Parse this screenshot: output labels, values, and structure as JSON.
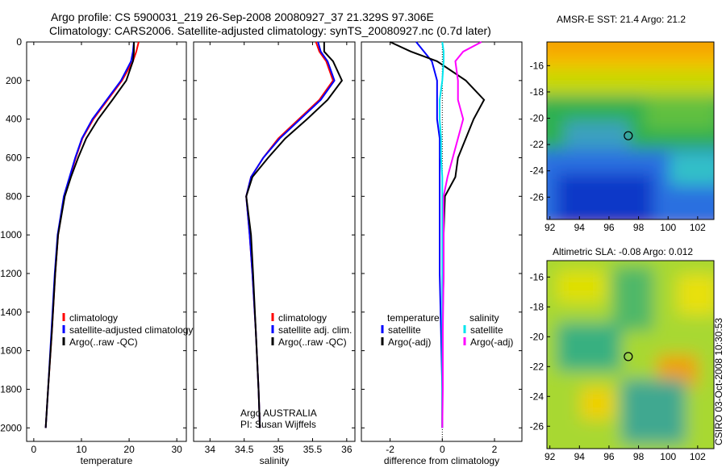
{
  "title_line1": "Argo profile: CS 5900031_219 26-Sep-2008 20080927_37 21.329S 97.306E",
  "title_line2": "Climatology: CARS2006. Satellite-adjusted climatology: synTS_20080927.nc (0.7d later)",
  "credit": "CSIRO 03-Oct-2008 10:30:53",
  "colors": {
    "climatology": "#ff0000",
    "satellite": "#0000ff",
    "argo": "#000000",
    "sat_sal": "#00e5ee",
    "argo_sal": "#ff00ff"
  },
  "chart_data": [
    {
      "type": "line",
      "xlabel": "temperature",
      "xlim": [
        -1.5,
        32
      ],
      "ylim": [
        2070,
        0
      ],
      "xticks": [
        0,
        10,
        20,
        30
      ],
      "yticks": [
        0,
        200,
        400,
        600,
        800,
        1000,
        1200,
        1400,
        1600,
        1800,
        2000
      ],
      "legend": [
        "climatology",
        "satellite-adjusted climatology",
        "Argo(..raw -QC)"
      ],
      "depth": [
        0,
        50,
        100,
        200,
        300,
        400,
        500,
        600,
        700,
        800,
        1000,
        1200,
        1500,
        1800,
        2000
      ],
      "series": [
        {
          "name": "climatology",
          "color": "#ff0000",
          "values": [
            22,
            21.5,
            20.8,
            18.5,
            15.5,
            12.5,
            10.2,
            8.8,
            7.6,
            6.4,
            5.1,
            4.5,
            3.8,
            3.0,
            2.5
          ]
        },
        {
          "name": "satellite-adjusted climatology",
          "color": "#0000ff",
          "values": [
            21,
            20.8,
            20.4,
            18.3,
            15.3,
            12.3,
            10.1,
            8.7,
            7.5,
            6.3,
            5.0,
            4.4,
            3.7,
            3.0,
            2.5
          ]
        },
        {
          "name": "Argo(..raw -QC)",
          "color": "#000000",
          "values": [
            21,
            21,
            20.8,
            19.4,
            16.5,
            13.5,
            11,
            9.3,
            7.8,
            6.5,
            5.1,
            4.5,
            3.8,
            3.0,
            2.5
          ]
        }
      ]
    },
    {
      "type": "line",
      "xlabel": "salinity",
      "xlim": [
        33.76,
        36.12
      ],
      "ylim": [
        2070,
        0
      ],
      "xticks": [
        34,
        34.5,
        35,
        35.5,
        36
      ],
      "legend": [
        "climatology",
        "satellite adj. clim.",
        "Argo(..raw -QC)"
      ],
      "annotation": [
        "Argo AUSTRALIA",
        "PI: Susan Wijffels"
      ],
      "depth": [
        0,
        50,
        100,
        200,
        300,
        400,
        500,
        600,
        700,
        800,
        1000,
        1200,
        1500,
        1800,
        2000
      ],
      "series": [
        {
          "name": "climatology",
          "color": "#ff0000",
          "values": [
            35.55,
            35.6,
            35.7,
            35.8,
            35.6,
            35.3,
            35.0,
            34.78,
            34.6,
            34.53,
            34.58,
            34.62,
            34.67,
            34.71,
            34.73
          ]
        },
        {
          "name": "satellite adj. clim.",
          "color": "#0000ff",
          "values": [
            35.58,
            35.62,
            35.72,
            35.82,
            35.62,
            35.32,
            35.02,
            34.78,
            34.6,
            34.53,
            34.58,
            34.62,
            34.67,
            34.71,
            34.73
          ]
        },
        {
          "name": "Argo(..raw -QC)",
          "color": "#000000",
          "values": [
            35.67,
            35.67,
            35.8,
            35.93,
            35.72,
            35.42,
            35.1,
            34.85,
            34.62,
            34.53,
            34.6,
            34.63,
            34.67,
            34.71,
            34.73
          ]
        }
      ]
    },
    {
      "type": "line",
      "xlabel": "difference from climatology",
      "xlim": [
        -3.1,
        3.05
      ],
      "ylim": [
        2070,
        0
      ],
      "xticks": [
        -2,
        0,
        2
      ],
      "legend_headers": [
        "temperature",
        "salinity"
      ],
      "legend": [
        "satellite",
        "Argo(-adj)",
        "satellite",
        "Argo(-adj)"
      ],
      "depth": [
        0,
        50,
        100,
        200,
        300,
        400,
        500,
        600,
        700,
        800,
        1000,
        1200,
        1500,
        1800,
        2000
      ],
      "series": [
        {
          "name": "temperature satellite",
          "color": "#0000ff",
          "values": [
            -1,
            -0.7,
            -0.4,
            -0.2,
            -0.2,
            -0.2,
            -0.1,
            -0.1,
            -0.1,
            -0.1,
            -0.1,
            -0.1,
            -0.05,
            0,
            0
          ]
        },
        {
          "name": "temperature Argo(-adj)",
          "color": "#000000",
          "values": [
            -2,
            -1.2,
            -0.2,
            0.9,
            1.6,
            1.2,
            0.9,
            0.6,
            0.5,
            0.1,
            0.05,
            0.05,
            0,
            0,
            0
          ]
        },
        {
          "name": "salinity satellite",
          "color": "#00e5ee",
          "values": [
            0,
            0.05,
            0.05,
            0,
            -0.1,
            -0.1,
            -0.05,
            -0.05,
            0,
            0,
            0,
            0,
            0,
            0,
            0
          ]
        },
        {
          "name": "salinity Argo(-adj)",
          "color": "#ff00ff",
          "values": [
            1.5,
            0.8,
            0.5,
            0.6,
            0.6,
            0.8,
            0.6,
            0.4,
            0.2,
            0.05,
            0.05,
            0.05,
            0.02,
            0.02,
            0
          ]
        }
      ]
    },
    {
      "type": "heatmap",
      "title": "AMSR-E SST: 21.4 Argo: 21.2",
      "xticks": [
        92,
        94,
        96,
        98,
        100,
        102
      ],
      "yticks": [
        -16,
        -18,
        -20,
        -22,
        -24,
        -26
      ],
      "xlim": [
        91.8,
        103.1
      ],
      "ylim": [
        -27.7,
        -14.2
      ],
      "marker": [
        97.306,
        -21.329
      ]
    },
    {
      "type": "heatmap",
      "title": "Altimetric SLA: -0.08 Argo: 0.012",
      "xticks": [
        92,
        94,
        96,
        98,
        100,
        102
      ],
      "yticks": [
        -16,
        -18,
        -20,
        -22,
        -24,
        -26
      ],
      "xlim": [
        91.8,
        103.1
      ],
      "ylim": [
        -27.5,
        -14.9
      ],
      "marker": [
        97.306,
        -21.329
      ]
    }
  ]
}
